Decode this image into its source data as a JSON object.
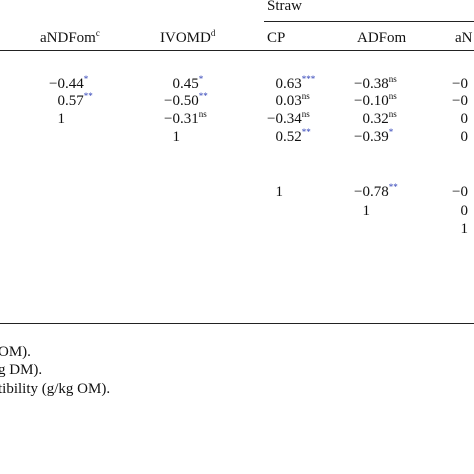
{
  "header": {
    "group": "Straw",
    "columns": [
      {
        "text": "aNDFom",
        "sup": "c"
      },
      {
        "text": "IVOMD",
        "sup": "d"
      },
      {
        "text": "CP",
        "sup": null
      },
      {
        "text": "ADFom",
        "sup": null
      },
      {
        "text": "aN",
        "sup": null
      }
    ]
  },
  "rows": [
    [
      {
        "text": "−0.44",
        "sup": "*"
      },
      {
        "text": "0.45",
        "sup": "*"
      },
      {
        "text": "0.63",
        "sup": "***"
      },
      {
        "text": "−0.38",
        "sup": "ns"
      },
      {
        "text": "−0",
        "sup": null
      }
    ],
    [
      {
        "text": "0.57",
        "sup": "**"
      },
      {
        "text": "−0.50",
        "sup": "**"
      },
      {
        "text": "0.03",
        "sup": "ns"
      },
      {
        "text": "−0.10",
        "sup": "ns"
      },
      {
        "text": "−0",
        "sup": null
      }
    ],
    [
      {
        "text": "1",
        "sup": null
      },
      {
        "text": "−0.31",
        "sup": "ns"
      },
      {
        "text": "−0.34",
        "sup": "ns"
      },
      {
        "text": "0.32",
        "sup": "ns"
      },
      {
        "text": "0",
        "sup": null
      }
    ],
    [
      null,
      {
        "text": "1",
        "sup": null
      },
      {
        "text": "0.52",
        "sup": "**"
      },
      {
        "text": "−0.39",
        "sup": "*"
      },
      {
        "text": "0",
        "sup": null
      }
    ],
    [
      null,
      null,
      {
        "text": "1",
        "sup": null
      },
      {
        "text": "−0.78",
        "sup": "**"
      },
      {
        "text": "−0",
        "sup": null
      }
    ],
    [
      null,
      null,
      null,
      {
        "text": "1",
        "sup": null
      },
      {
        "text": "0",
        "sup": null
      }
    ],
    [
      null,
      null,
      null,
      null,
      {
        "text": "1",
        "sup": null
      }
    ]
  ],
  "footnotes": [
    "OM).",
    "g DM).",
    "tibility (g/kg OM)."
  ]
}
